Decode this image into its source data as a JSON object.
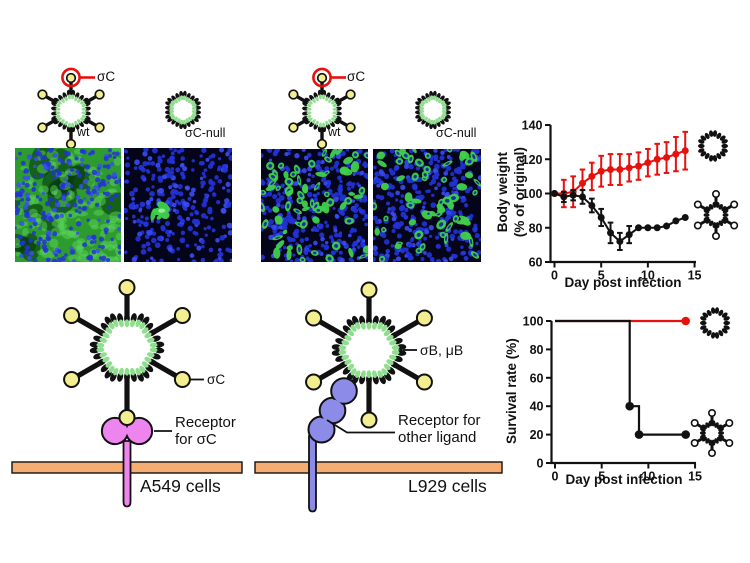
{
  "colors": {
    "red": "#e8100c",
    "black": "#111111",
    "yellow": "#f3ee8f",
    "capsid_green": "#8ede8e",
    "membrane": "#f5ad72",
    "receptor_sigmaC": "#ee85ee",
    "receptor_other": "#8c8ce8",
    "nuclei_blue": "#2233d8",
    "nuclei_bright": "#3a4df2",
    "infection_green": "#3fd04a",
    "confluent_green": "#2e9b2e"
  },
  "schematics": {
    "a549": {
      "sigmaC": "σC",
      "wt": "wt",
      "null": "σC-null"
    },
    "l929": {
      "sigmaC": "σC",
      "wt": "wt",
      "null": "σC-null"
    }
  },
  "micrographs": {
    "a549_wt": {
      "style": "confluent",
      "description": "confluent green infection over blue nuclei",
      "green_count": 120,
      "nuclei_count": 240
    },
    "a549_null": {
      "style": "cluster",
      "description": "blue nuclei only with one small green focus",
      "green_count": 7,
      "nuclei_count": 290
    },
    "l929_wt": {
      "style": "scattered",
      "description": "many scattered green infected cells among blue nuclei",
      "green_count": 72,
      "nuclei_count": 330
    },
    "l929_null": {
      "style": "scattered",
      "description": "many scattered green infected cells among blue nuclei",
      "green_count": 66,
      "nuclei_count": 330
    }
  },
  "diagrams": {
    "a549": {
      "spike_label": "σC",
      "receptor_label_1": "Receptor",
      "receptor_label_2": "for σC",
      "cell_label": "A549 cells"
    },
    "l929": {
      "capsid_label": "σB, μB",
      "receptor_label_1": "Receptor for",
      "receptor_label_2": "other ligand",
      "cell_label": "L929 cells"
    }
  },
  "chart_data": [
    {
      "type": "line",
      "subtype": "error-bar-series",
      "xlabel": "Day post infection",
      "ylabel": "Body weight (% of original)",
      "ylabel_lines": [
        "Body weight",
        "(% of original)"
      ],
      "x": [
        0,
        1,
        2,
        3,
        4,
        5,
        6,
        7,
        8,
        9,
        10,
        11,
        12,
        13,
        14
      ],
      "xlim": [
        0,
        15
      ],
      "ylim": [
        60,
        140
      ],
      "xticks": [
        0,
        5,
        10,
        15
      ],
      "yticks": [
        60,
        80,
        100,
        120,
        140
      ],
      "grid": false,
      "series": [
        {
          "name": "σC-null",
          "color": "#e8100c",
          "values": [
            100,
            100,
            101,
            106,
            110,
            113,
            114,
            114,
            115,
            116,
            118,
            120,
            121,
            123,
            125
          ],
          "errors": [
            0,
            8,
            9,
            8,
            8,
            9,
            9,
            9,
            8,
            8,
            8,
            9,
            9,
            10,
            11
          ]
        },
        {
          "name": "wt",
          "color": "#111111",
          "values": [
            100,
            98,
            99,
            98,
            93,
            86,
            77,
            72,
            76,
            80,
            80,
            80,
            81,
            84,
            86
          ],
          "errors": [
            0,
            3,
            3,
            4,
            4,
            5,
            6,
            5,
            5,
            0,
            0,
            0,
            0,
            0,
            0
          ]
        }
      ],
      "legend": {
        "position": "right-icons",
        "entries": [
          "σC-null virion (no spikes)",
          "wt virion (spiked)"
        ]
      }
    },
    {
      "type": "line",
      "subtype": "survival-step",
      "xlabel": "Day post infection",
      "ylabel": "Survival rate (%)",
      "xlim": [
        0,
        15
      ],
      "ylim": [
        0,
        100
      ],
      "xticks": [
        0,
        5,
        10,
        15
      ],
      "yticks": [
        0,
        20,
        40,
        60,
        80,
        100
      ],
      "grid": false,
      "series": [
        {
          "name": "σC-null",
          "color": "#e8100c",
          "points": [
            [
              0,
              100
            ],
            [
              14,
              100
            ]
          ],
          "markers": [
            [
              14,
              100
            ]
          ]
        },
        {
          "name": "wt",
          "color": "#111111",
          "points": [
            [
              0,
              100
            ],
            [
              8,
              100
            ],
            [
              8,
              40
            ],
            [
              9,
              40
            ],
            [
              9,
              20
            ],
            [
              14,
              20
            ]
          ],
          "markers": [
            [
              8,
              40
            ],
            [
              9,
              20
            ],
            [
              14,
              20
            ]
          ]
        }
      ],
      "legend": {
        "position": "right-icons",
        "entries": [
          "σC-null virion (no spikes)",
          "wt virion (spiked)"
        ]
      }
    }
  ]
}
